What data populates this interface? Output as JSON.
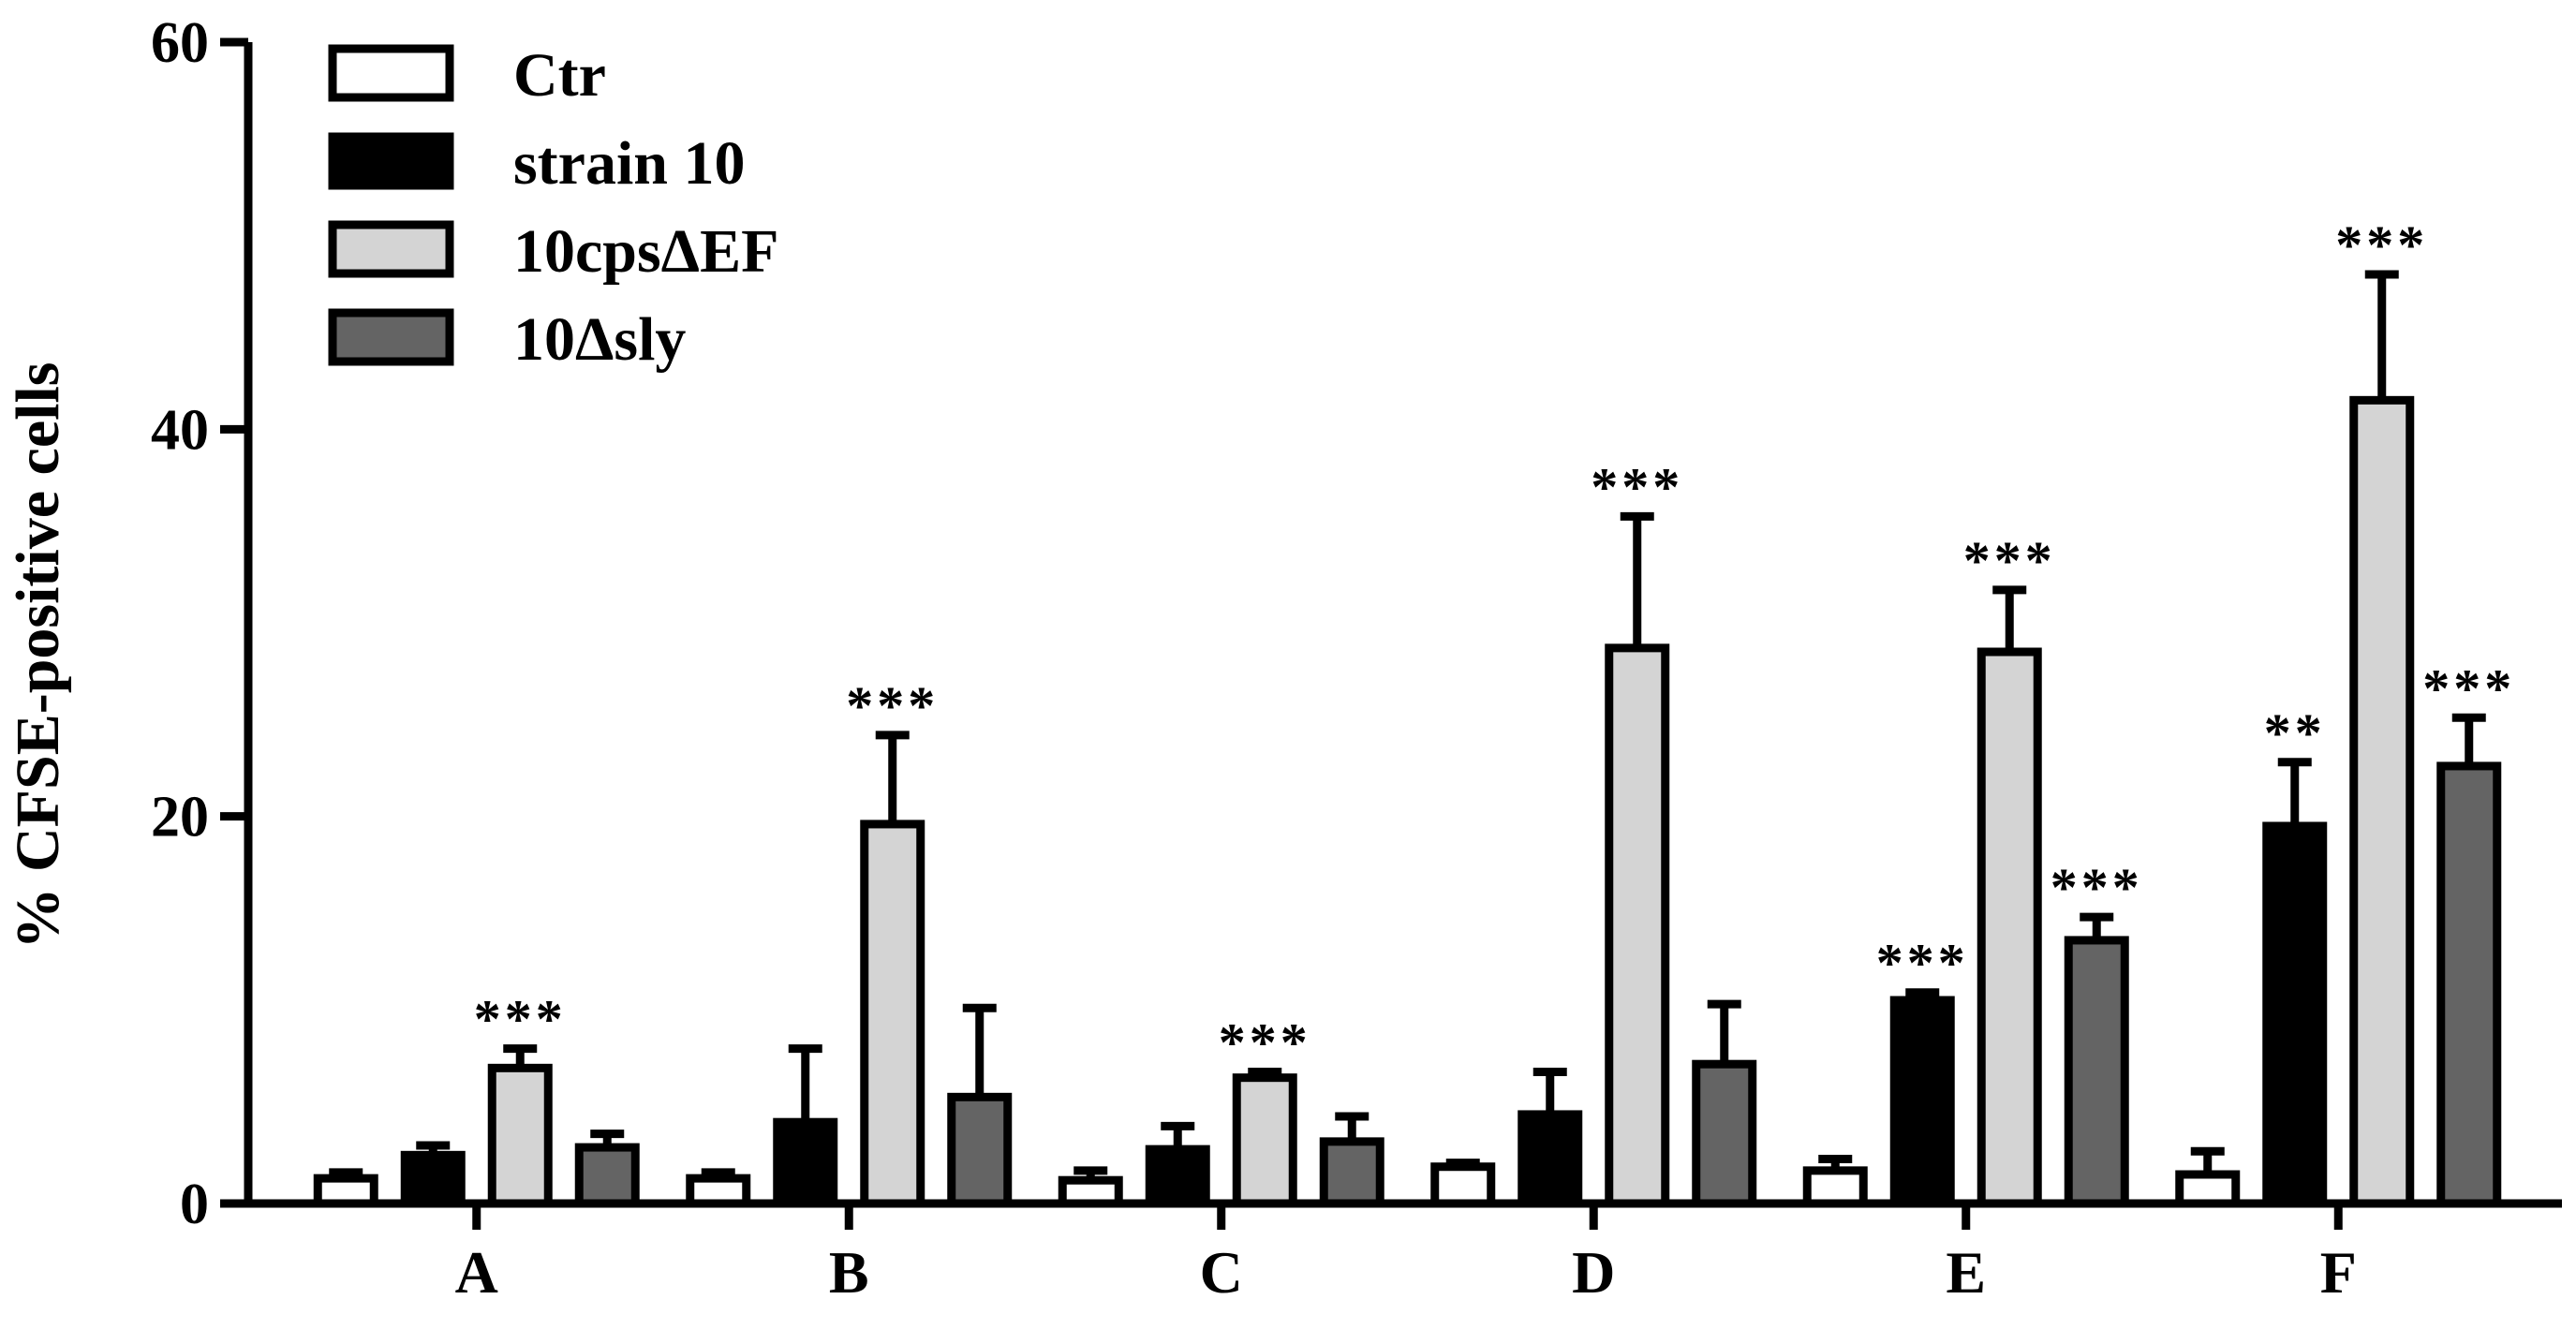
{
  "chart_data": {
    "type": "bar",
    "ylabel": "% CFSE-positive cells",
    "xlabel": "",
    "ylim": [
      0,
      60
    ],
    "yticks": [
      0,
      20,
      40,
      60
    ],
    "categories": [
      "A",
      "B",
      "C",
      "D",
      "E",
      "F"
    ],
    "legend_position": "top-left",
    "series": [
      {
        "name": "Ctr",
        "color": "#ffffff",
        "values": [
          1.3,
          1.3,
          1.2,
          1.9,
          1.7,
          1.5
        ],
        "errors": [
          0.3,
          0.3,
          0.5,
          0.2,
          0.6,
          1.2
        ],
        "significance": [
          "",
          "",
          "",
          "",
          "",
          ""
        ]
      },
      {
        "name": "strain 10",
        "color": "#000000",
        "values": [
          2.5,
          4.2,
          2.8,
          4.6,
          10.5,
          19.5
        ],
        "errors": [
          0.5,
          3.8,
          1.2,
          2.2,
          0.4,
          3.3
        ],
        "significance": [
          "",
          "",
          "",
          "",
          "***",
          "**"
        ]
      },
      {
        "name": "10cpsΔEF",
        "color": "#d4d4d4",
        "values": [
          7.0,
          19.6,
          6.5,
          28.7,
          28.5,
          41.5
        ],
        "errors": [
          1.0,
          4.6,
          0.3,
          6.8,
          3.2,
          6.5
        ],
        "significance": [
          "***",
          "***",
          "***",
          "***",
          "***",
          "***"
        ]
      },
      {
        "name": "10Δsly",
        "color": "#646464",
        "values": [
          2.9,
          5.5,
          3.2,
          7.2,
          13.6,
          22.6
        ],
        "errors": [
          0.7,
          4.6,
          1.3,
          3.1,
          1.2,
          2.5
        ],
        "significance": [
          "",
          "",
          "",
          "",
          "***",
          "***"
        ]
      }
    ]
  }
}
